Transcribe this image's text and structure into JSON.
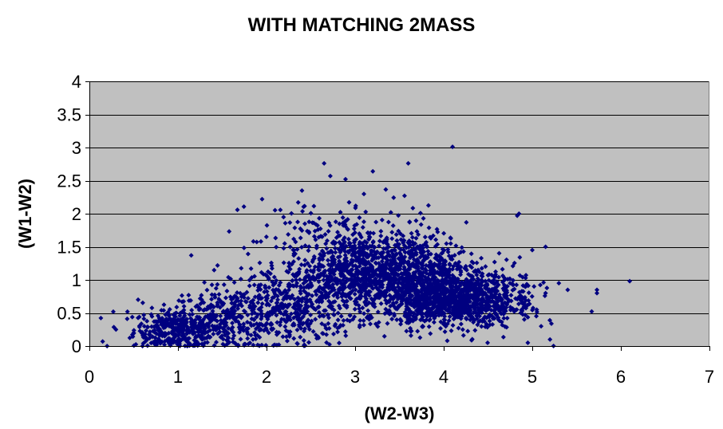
{
  "chart_data": {
    "type": "scatter",
    "title": "WITH MATCHING 2MASS",
    "xlabel": "(W2-W3)",
    "ylabel": "(W1-W2)",
    "xlim": [
      0,
      7
    ],
    "ylim": [
      0,
      4
    ],
    "xticks": [
      "0",
      "1",
      "2",
      "3",
      "4",
      "5",
      "6",
      "7"
    ],
    "yticks": [
      "0",
      "0.5",
      "1",
      "1.5",
      "2",
      "2.5",
      "3",
      "3.5",
      "4"
    ],
    "grid": "horizontal",
    "legend": "none",
    "colors": {
      "plot_background": "#c0c0c0",
      "marker": "#000080",
      "grid": "#000000"
    },
    "clusters": [
      {
        "cx": 1.0,
        "cy": 0.25,
        "sx": 0.25,
        "sy": 0.15,
        "n": 350
      },
      {
        "cx": 1.6,
        "cy": 0.4,
        "sx": 0.35,
        "sy": 0.25,
        "n": 300
      },
      {
        "cx": 2.3,
        "cy": 0.6,
        "sx": 0.35,
        "sy": 0.3,
        "n": 350
      },
      {
        "cx": 3.1,
        "cy": 1.1,
        "sx": 0.45,
        "sy": 0.3,
        "n": 900
      },
      {
        "cx": 3.7,
        "cy": 1.05,
        "sx": 0.35,
        "sy": 0.3,
        "n": 600
      },
      {
        "cx": 4.1,
        "cy": 0.65,
        "sx": 0.35,
        "sy": 0.18,
        "n": 700
      },
      {
        "cx": 4.6,
        "cy": 0.75,
        "sx": 0.25,
        "sy": 0.25,
        "n": 200
      },
      {
        "cx": 2.8,
        "cy": 1.7,
        "sx": 0.5,
        "sy": 0.3,
        "n": 120
      }
    ],
    "points": [
      [
        0.15,
        0.07
      ],
      [
        0.2,
        0.0
      ],
      [
        0.27,
        0.52
      ],
      [
        0.3,
        0.25
      ],
      [
        0.43,
        0.52
      ],
      [
        0.55,
        0.7
      ],
      [
        0.5,
        0.2
      ],
      [
        0.6,
        0.0
      ],
      [
        0.62,
        0.3
      ],
      [
        0.68,
        0.12
      ],
      [
        0.75,
        0.05
      ],
      [
        1.15,
        1.37
      ],
      [
        1.95,
        2.22
      ],
      [
        2.4,
        2.35
      ],
      [
        2.65,
        2.76
      ],
      [
        2.72,
        2.57
      ],
      [
        3.2,
        2.64
      ],
      [
        3.6,
        2.76
      ],
      [
        4.1,
        3.01
      ],
      [
        4.85,
        2.0
      ],
      [
        4.83,
        1.97
      ],
      [
        5.0,
        1.45
      ],
      [
        5.15,
        1.5
      ],
      [
        5.3,
        0.95
      ],
      [
        5.15,
        0.8
      ],
      [
        5.05,
        0.55
      ],
      [
        5.1,
        0.3
      ],
      [
        5.2,
        0.1
      ],
      [
        4.95,
        0.05
      ],
      [
        5.4,
        0.85
      ],
      [
        5.73,
        0.85
      ],
      [
        5.73,
        0.8
      ],
      [
        6.1,
        0.98
      ]
    ]
  }
}
